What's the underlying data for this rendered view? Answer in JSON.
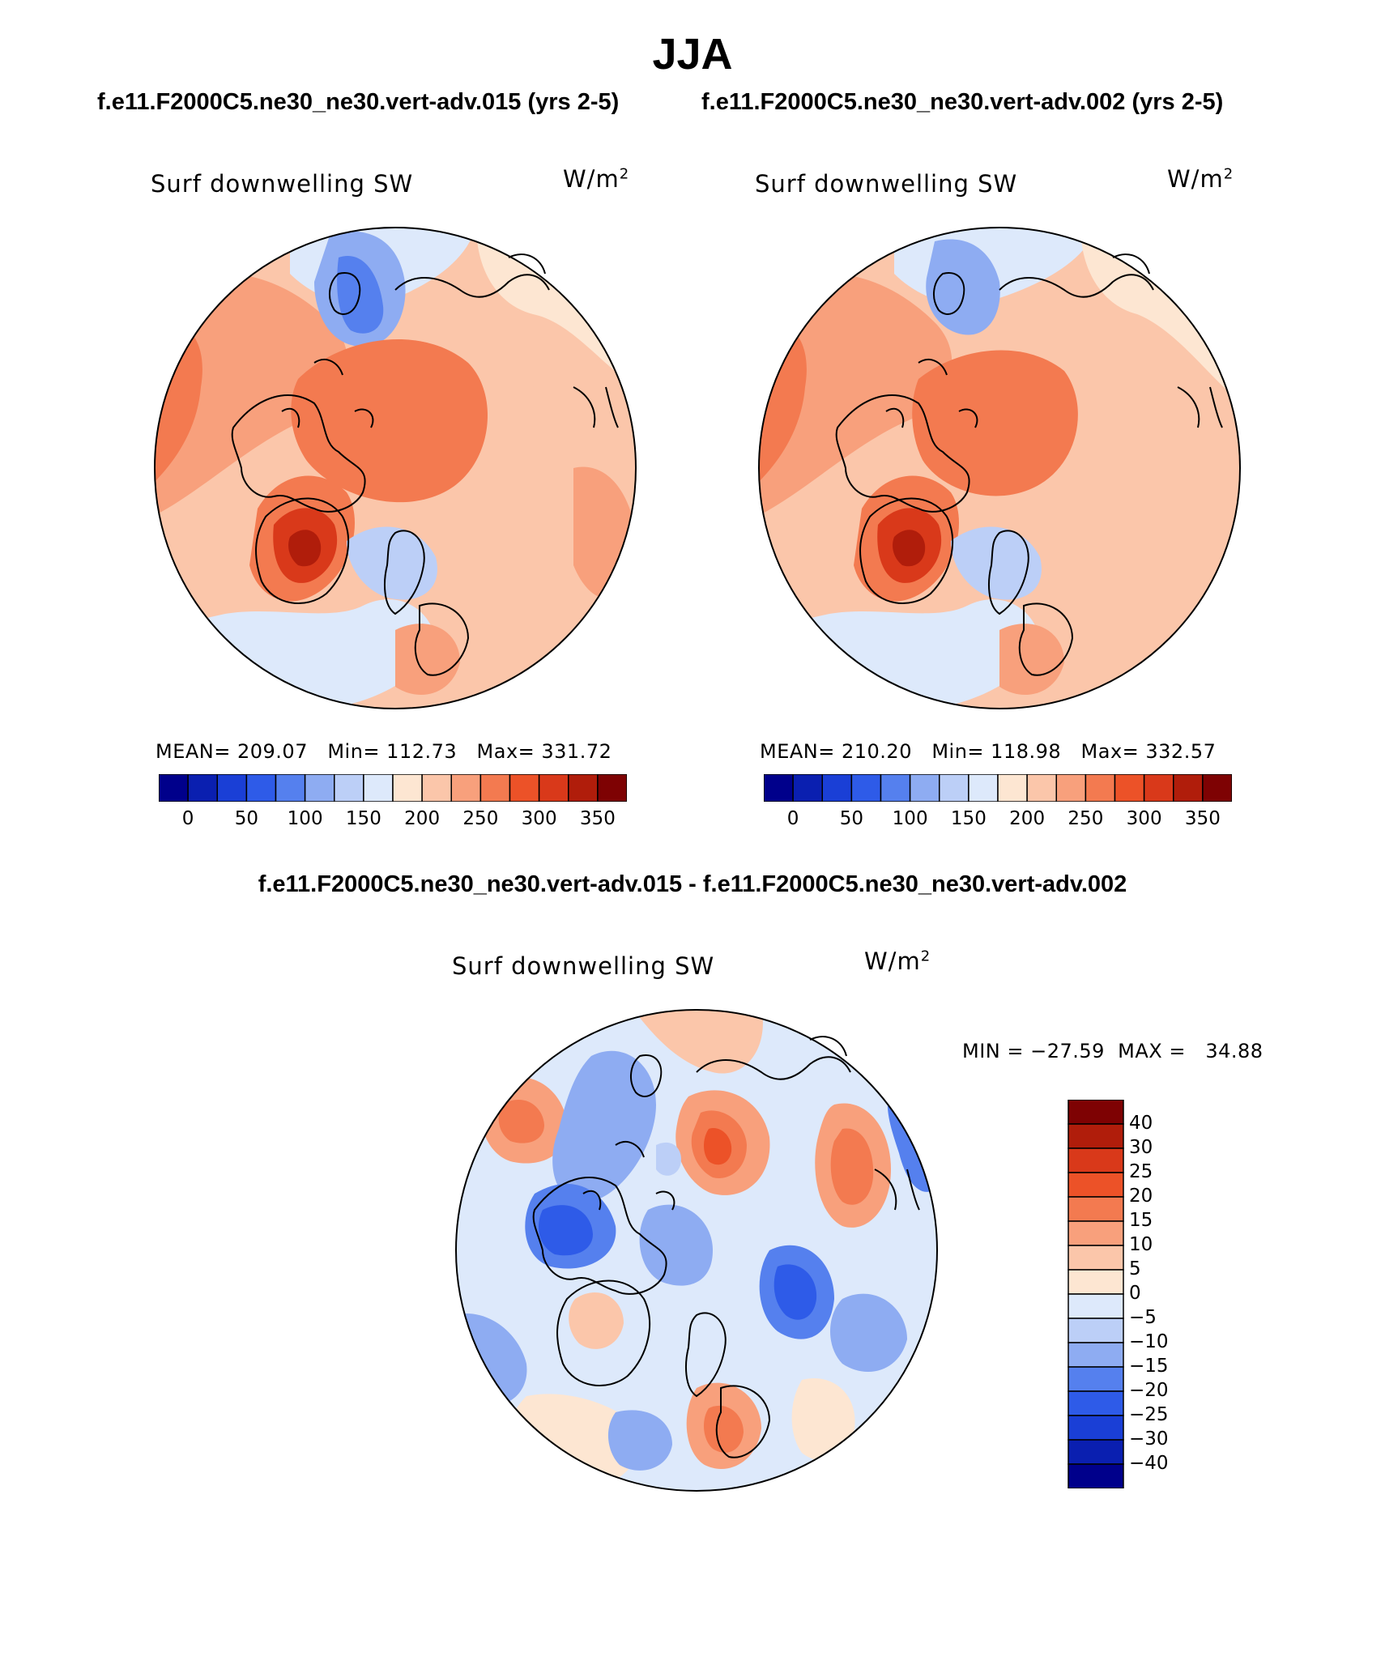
{
  "title": "JJA",
  "panels": [
    {
      "case_title": "f.e11.F2000C5.ne30_ne30.vert-adv.015 (yrs 2-5)",
      "variable": "Surf downwelling SW",
      "units": "W/m",
      "units_exp": "2",
      "stats": "MEAN= 209.07   Min= 112.73   Max= 331.72",
      "colorbar_labels": [
        "0",
        "50",
        "100",
        "150",
        "200",
        "250",
        "300",
        "350"
      ]
    },
    {
      "case_title": "f.e11.F2000C5.ne30_ne30.vert-adv.002 (yrs 2-5)",
      "variable": "Surf downwelling SW",
      "units": "W/m",
      "units_exp": "2",
      "stats": "MEAN= 210.20   Min= 118.98   Max= 332.57",
      "colorbar_labels": [
        "0",
        "50",
        "100",
        "150",
        "200",
        "250",
        "300",
        "350"
      ]
    }
  ],
  "difference": {
    "title": "f.e11.F2000C5.ne30_ne30.vert-adv.015 - f.e11.F2000C5.ne30_ne30.vert-adv.002",
    "variable": "Surf downwelling SW",
    "units": "W/m",
    "units_exp": "2",
    "stats": "MIN = −27.59  MAX =   34.88",
    "colorbar_labels": [
      "40",
      "30",
      "25",
      "20",
      "15",
      "10",
      "5",
      "0",
      "−5",
      "−10",
      "−15",
      "−20",
      "−25",
      "−30",
      "−40"
    ]
  },
  "colors": {
    "abs_scale": [
      "#00008b",
      "#0a1fb0",
      "#1a3fd6",
      "#2e5be8",
      "#5580ee",
      "#8eacf2",
      "#bccff7",
      "#dde9fb",
      "#fde6d2",
      "#fbc6aa",
      "#f8a07c",
      "#f37a50",
      "#ec5228",
      "#d9391a",
      "#b01d0b",
      "#7e0203"
    ],
    "diff_scale": [
      "#7e0203",
      "#b01d0b",
      "#d9391a",
      "#ec5228",
      "#f37a50",
      "#f8a07c",
      "#fbc6aa",
      "#fde6d2",
      "#dde9fb",
      "#bccff7",
      "#8eacf2",
      "#5580ee",
      "#2e5be8",
      "#1a3fd6",
      "#0a1fb0",
      "#00008b"
    ]
  },
  "chart_data": [
    {
      "type": "heatmap",
      "title": "Surf downwelling SW",
      "units": "W/m²",
      "projection": "north polar stereographic",
      "mean": 209.07,
      "min": 112.73,
      "max": 331.72,
      "contour_levels": [
        0,
        50,
        100,
        150,
        200,
        250,
        300,
        350
      ]
    },
    {
      "type": "heatmap",
      "title": "Surf downwelling SW",
      "units": "W/m²",
      "projection": "north polar stereographic",
      "mean": 210.2,
      "min": 118.98,
      "max": 332.57,
      "contour_levels": [
        0,
        50,
        100,
        150,
        200,
        250,
        300,
        350
      ]
    },
    {
      "type": "heatmap",
      "title": "Surf downwelling SW",
      "units": "W/m²",
      "projection": "north polar stereographic",
      "min": -27.59,
      "max": 34.88,
      "contour_levels": [
        -40,
        -30,
        -25,
        -20,
        -15,
        -10,
        -5,
        0,
        5,
        10,
        15,
        20,
        25,
        30,
        40
      ]
    }
  ]
}
